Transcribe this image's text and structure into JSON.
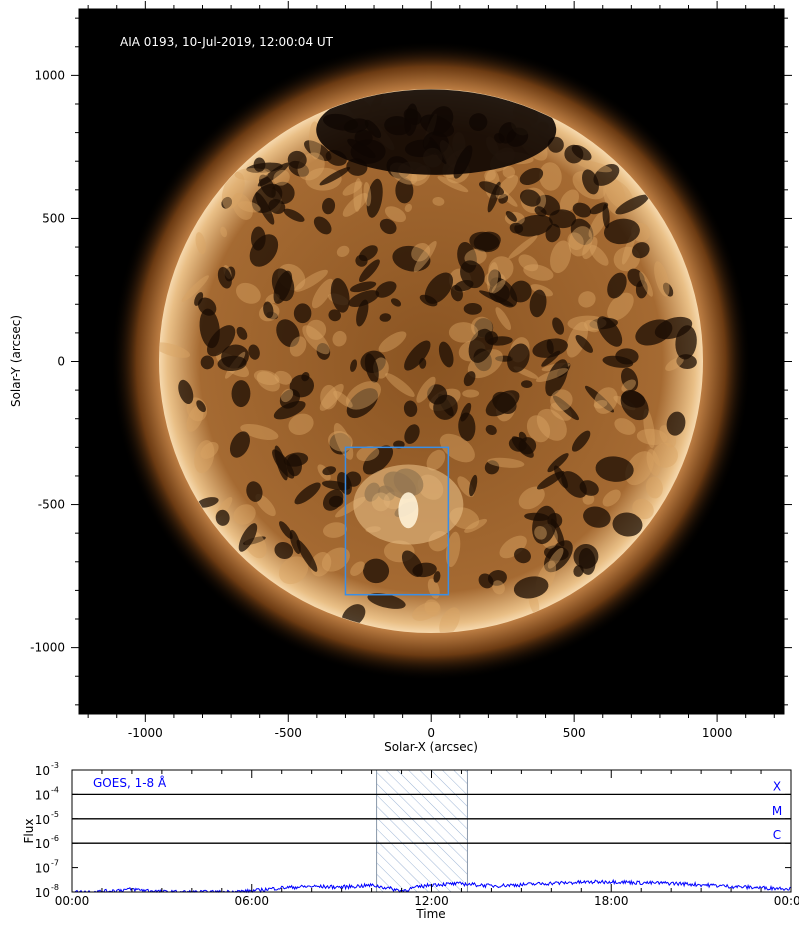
{
  "chart_data": [
    {
      "type": "image",
      "title": "AIA 0193, 10-Jul-2019, 12:00:04 UT",
      "xlabel": "Solar-X (arcsec)",
      "ylabel": "Solar-Y (arcsec)",
      "xlim": [
        -1232,
        1234
      ],
      "ylim": [
        -1232,
        1232
      ],
      "xticks": [
        -1000,
        -500,
        0,
        500,
        1000
      ],
      "yticks": [
        -1000,
        -500,
        0,
        500,
        1000
      ],
      "xtick_labels": [
        "-1000",
        "-500",
        "0",
        "500",
        "1000"
      ],
      "ytick_labels": [
        "-1000",
        "-500",
        "0",
        "500",
        "1000"
      ],
      "solar_radius_arcsec": 950,
      "colormap": "sdoaia193",
      "region_box": {
        "x": [
          -300,
          60
        ],
        "y": [
          -815,
          -300
        ],
        "color": "#3a8ee6"
      }
    },
    {
      "type": "line",
      "label": "GOES, 1-8 Å",
      "xlabel": "Time",
      "ylabel": "Flux",
      "xlim_hours": [
        0,
        24
      ],
      "ylim": [
        1e-08,
        0.001
      ],
      "yscale": "log",
      "xtick_labels": [
        "00:00",
        "06:00",
        "12:00",
        "18:00",
        "00:00"
      ],
      "ytick_labels": [
        {
          "base": "10",
          "exp": "-3"
        },
        {
          "base": "10",
          "exp": "-4"
        },
        {
          "base": "10",
          "exp": "-5"
        },
        {
          "base": "10",
          "exp": "-6"
        },
        {
          "base": "10",
          "exp": "-7"
        },
        {
          "base": "10",
          "exp": "-8"
        }
      ],
      "flare_class_levels": [
        {
          "label": "X",
          "value": 0.0001
        },
        {
          "label": "M",
          "value": 1e-05
        },
        {
          "label": "C",
          "value": 1e-06
        }
      ],
      "highlight_interval": [
        "10:10",
        "13:12"
      ],
      "series_color": "#0000ff",
      "hours": [
        0,
        1,
        2,
        3,
        4,
        5,
        6,
        7,
        8,
        9,
        10,
        11,
        12,
        13,
        14,
        15,
        16,
        17,
        18,
        19,
        20,
        21,
        22,
        23,
        24
      ],
      "flux": [
        1e-08,
        1.05e-08,
        1.3e-08,
        1.02e-08,
        1e-08,
        1e-08,
        1.1e-08,
        1.5e-08,
        1.7e-08,
        1.6e-08,
        1.9e-08,
        1.1e-08,
        2e-08,
        2.2e-08,
        1.8e-08,
        2e-08,
        2.3e-08,
        2.5e-08,
        2.7e-08,
        2.4e-08,
        2.3e-08,
        2e-08,
        1.7e-08,
        1.5e-08,
        1.4e-08
      ]
    }
  ]
}
